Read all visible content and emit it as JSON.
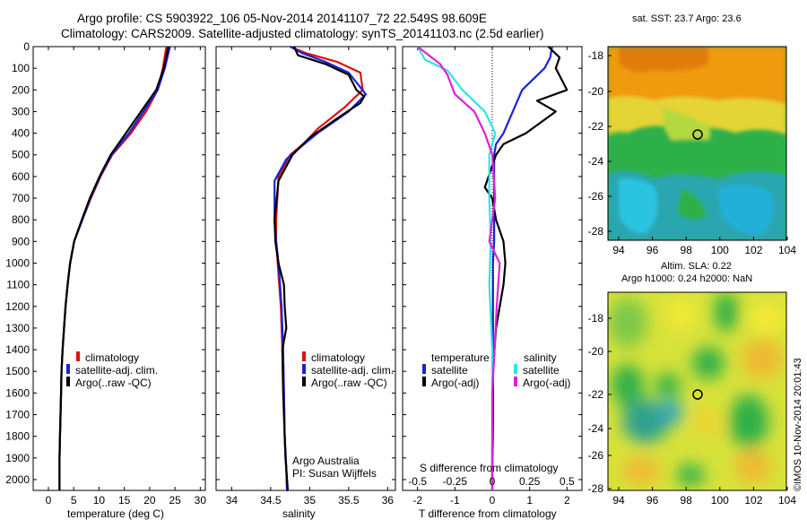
{
  "header": {
    "line1": "Argo profile: CS 5903922_106 05-Nov-2014 20141107_72 22.549S 98.609E",
    "line2": "Climatology: CARS2009. Satellite-adjusted climatology: synTS_20141103.nc (2.5d earlier)"
  },
  "colors": {
    "climatology": "#e01010",
    "satellite": "#1a22d8",
    "argo": "#000000",
    "cyan": "#2fe4e8",
    "magenta": "#e020d8"
  },
  "depth_ticks": [
    "0",
    "100",
    "200",
    "300",
    "400",
    "500",
    "600",
    "700",
    "800",
    "900",
    "1000",
    "1100",
    "1200",
    "1300",
    "1400",
    "1500",
    "1600",
    "1700",
    "1800",
    "1900",
    "2000"
  ],
  "panels": {
    "temperature": {
      "xlabel": "temperature (deg C)",
      "xticks": [
        "0",
        "5",
        "10",
        "15",
        "20",
        "25",
        "30"
      ],
      "legend": [
        "climatology",
        "satellite-adj. clim.",
        "Argo(..raw -QC)"
      ]
    },
    "salinity": {
      "xlabel": "salinity",
      "xticks": [
        "34",
        "34.5",
        "35",
        "35.5",
        "36"
      ],
      "legend": [
        "climatology",
        "satellite-adj. clim.",
        "Argo(..raw -QC)"
      ],
      "credit1": "Argo Australia",
      "credit2": "PI: Susan Wijffels"
    },
    "difference": {
      "top_label": "S difference from climatology",
      "top_ticks": [
        "-0.5",
        "-0.25",
        "0",
        "0.25",
        "0.5"
      ],
      "xlabel": "T difference from climatology",
      "xticks": [
        "-2",
        "-1",
        "0",
        "1",
        "2"
      ],
      "legend_head_t": "temperature",
      "legend_head_s": "salinity",
      "legend_t": [
        "satellite",
        "Argo(-adj)"
      ],
      "legend_s": [
        "satellite",
        "Argo(-adj)"
      ]
    }
  },
  "maps": {
    "sst_title": "sat. SST: 23.7  Argo: 23.6",
    "sla_title1": "Altim. SLA: 0.22",
    "sla_title2": "Argo h1000: 0.24 h2000: NaN",
    "lat_ticks": [
      "-18",
      "-20",
      "-22",
      "-24",
      "-26",
      "-28"
    ],
    "lon_ticks": [
      "94",
      "96",
      "98",
      "100",
      "102",
      "104"
    ],
    "stamp": "©IMOS 10-Nov-2014 20:01:43"
  },
  "chart_data": [
    {
      "type": "line",
      "title": "",
      "xlabel": "temperature (deg C)",
      "ylabel": "",
      "xlim": [
        -3,
        31
      ],
      "ylim": [
        2050,
        0
      ],
      "series": [
        {
          "name": "climatology",
          "x": [
            23.3,
            22.6,
            21.6,
            19.3,
            16.3,
            12.6,
            10.3,
            8.4,
            6.7,
            5.1,
            4.3,
            3.8,
            3.4,
            3.1,
            2.8,
            2.6,
            2.5,
            2.4,
            2.3,
            2.2,
            2.2
          ],
          "y": [
            0,
            100,
            200,
            300,
            400,
            500,
            600,
            700,
            800,
            900,
            1000,
            1100,
            1200,
            1300,
            1400,
            1500,
            1600,
            1700,
            1800,
            1900,
            2050
          ]
        },
        {
          "name": "satellite-adj. clim.",
          "x": [
            24.0,
            23.0,
            21.6,
            18.8,
            15.9,
            12.5,
            10.2,
            8.3,
            6.7,
            5.1,
            4.3,
            3.8,
            3.4,
            3.1,
            2.8,
            2.6,
            2.5,
            2.4,
            2.3,
            2.2,
            2.2
          ],
          "y": [
            0,
            100,
            200,
            300,
            400,
            500,
            600,
            700,
            800,
            900,
            1000,
            1100,
            1200,
            1300,
            1400,
            1500,
            1600,
            1700,
            1800,
            1900,
            2050
          ]
        },
        {
          "name": "Argo(..raw -QC)",
          "x": [
            23.7,
            22.8,
            21.3,
            18.3,
            15.3,
            12.3,
            10.1,
            8.2,
            6.6,
            5.1,
            4.3,
            3.8,
            3.4,
            3.1,
            2.8,
            2.6,
            2.5,
            2.4,
            2.3,
            2.2,
            2.2
          ],
          "y": [
            0,
            100,
            200,
            300,
            400,
            500,
            600,
            700,
            800,
            900,
            1000,
            1100,
            1200,
            1300,
            1400,
            1500,
            1600,
            1700,
            1800,
            1900,
            2050
          ]
        }
      ]
    },
    {
      "type": "line",
      "title": "",
      "xlabel": "salinity",
      "ylabel": "",
      "xlim": [
        33.8,
        36.1
      ],
      "ylim": [
        2050,
        0
      ],
      "series": [
        {
          "name": "climatology",
          "x": [
            34.75,
            34.95,
            35.35,
            35.65,
            35.68,
            35.45,
            35.1,
            34.95,
            34.75,
            34.6,
            34.57,
            34.57,
            34.59,
            34.61,
            34.63,
            34.65,
            34.67,
            34.68,
            34.69,
            34.7,
            34.71,
            34.72
          ],
          "y": [
            0,
            30,
            70,
            120,
            200,
            280,
            380,
            440,
            500,
            600,
            800,
            900,
            1000,
            1100,
            1200,
            1400,
            1600,
            1800,
            1900,
            1950,
            2050,
            2050
          ]
        },
        {
          "name": "satellite-adj. clim.",
          "x": [
            34.75,
            34.9,
            35.2,
            35.5,
            35.72,
            35.5,
            35.1,
            34.93,
            34.7,
            34.55,
            34.55,
            34.57,
            34.6,
            34.62,
            34.64,
            34.66,
            34.67,
            34.68,
            34.69,
            34.7,
            34.71,
            34.72
          ],
          "y": [
            0,
            30,
            70,
            120,
            220,
            300,
            400,
            450,
            520,
            620,
            800,
            900,
            1000,
            1100,
            1200,
            1400,
            1600,
            1800,
            1900,
            1950,
            2050,
            2050
          ]
        },
        {
          "name": "Argo(..raw -QC)",
          "x": [
            34.8,
            34.85,
            35.2,
            35.5,
            35.6,
            35.7,
            35.65,
            35.4,
            35.0,
            34.78,
            34.6,
            34.55,
            34.56,
            34.6,
            34.67,
            34.68,
            34.7,
            34.65,
            34.66,
            34.68,
            34.7,
            34.72
          ],
          "y": [
            0,
            40,
            80,
            130,
            200,
            230,
            260,
            320,
            420,
            500,
            620,
            800,
            900,
            1000,
            1100,
            1200,
            1300,
            1400,
            1600,
            1800,
            1950,
            2050
          ]
        }
      ]
    },
    {
      "type": "line",
      "title": "",
      "xlabel": "T difference from climatology",
      "ylabel": "",
      "xlim": [
        -2.4,
        2.4
      ],
      "ylim": [
        2050,
        0
      ],
      "series": [
        {
          "name": "satellite",
          "x": [
            1.6,
            1.55,
            1.4,
            1.1,
            0.8,
            0.55,
            0.3,
            0.1,
            0.05,
            0.05,
            0.05,
            0.05,
            0.05,
            0.02,
            0.02,
            0.02,
            0.02,
            0.02,
            0.02,
            0.0,
            0.0
          ],
          "y": [
            0,
            50,
            100,
            150,
            200,
            300,
            400,
            450,
            500,
            600,
            700,
            800,
            900,
            1000,
            1100,
            1200,
            1400,
            1600,
            1800,
            1950,
            2050
          ]
        },
        {
          "name": "Argo(-adj)",
          "x": [
            1.5,
            1.8,
            1.7,
            2.0,
            1.2,
            1.7,
            0.9,
            0.3,
            0.1,
            -0.2,
            0.0,
            0.1,
            0.3,
            0.35,
            0.3,
            0.1,
            0.02,
            0.02,
            0.0,
            0.0,
            0.0
          ],
          "y": [
            0,
            50,
            100,
            200,
            250,
            300,
            400,
            450,
            500,
            650,
            700,
            800,
            900,
            1000,
            1100,
            1300,
            1500,
            1700,
            1850,
            1950,
            2050
          ]
        }
      ]
    },
    {
      "type": "line",
      "title": "",
      "xlabel": "S difference from climatology",
      "ylabel": "",
      "xlim": [
        -0.6,
        0.6
      ],
      "ylim": [
        2050,
        0
      ],
      "series": [
        {
          "name": "satellite",
          "x": [
            -0.5,
            -0.45,
            -0.3,
            -0.2,
            -0.05,
            0.02,
            -0.02,
            -0.02,
            -0.01,
            -0.02,
            0.0,
            0.0,
            0.0
          ],
          "y": [
            0,
            60,
            110,
            200,
            300,
            400,
            500,
            700,
            900,
            1100,
            1400,
            1800,
            2050
          ]
        },
        {
          "name": "Argo(-adj)",
          "x": [
            -0.5,
            -0.35,
            -0.3,
            -0.25,
            -0.12,
            -0.05,
            0.0,
            0.02,
            -0.02,
            0.05,
            0.03,
            0.0,
            0.0
          ],
          "y": [
            0,
            80,
            130,
            220,
            300,
            400,
            500,
            700,
            900,
            1000,
            1200,
            1600,
            2050
          ]
        }
      ]
    }
  ]
}
